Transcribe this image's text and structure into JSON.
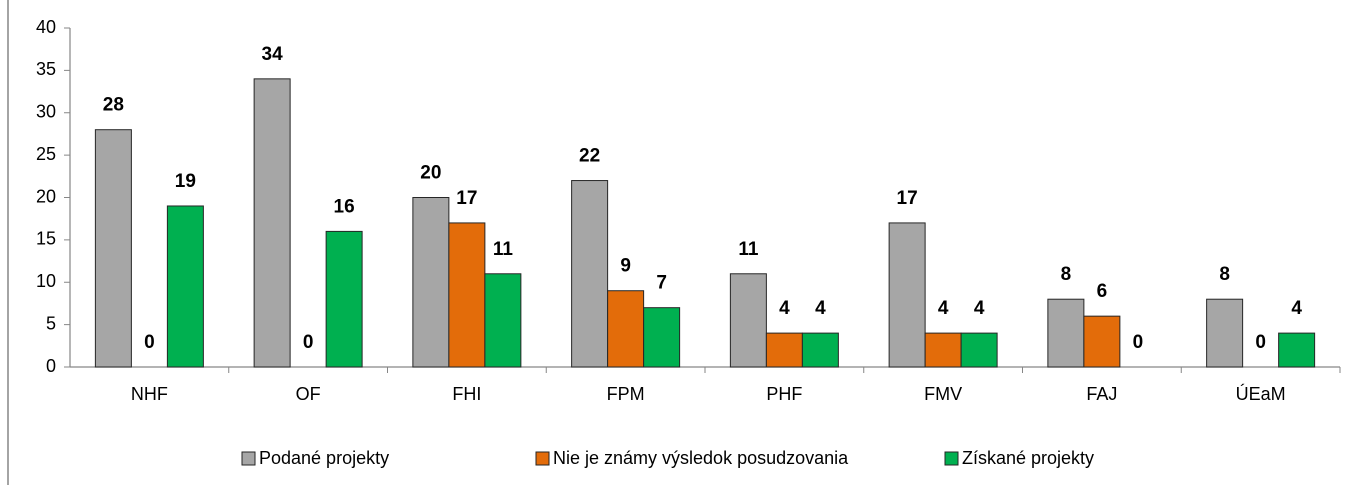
{
  "chart_data": {
    "type": "bar",
    "categories": [
      "NHF",
      "OF",
      "FHI",
      "FPM",
      "PHF",
      "FMV",
      "FAJ",
      "ÚEaM"
    ],
    "series": [
      {
        "name": "Podané projekty",
        "color": "#a6a6a6",
        "values": [
          28,
          34,
          20,
          22,
          11,
          17,
          8,
          8
        ]
      },
      {
        "name": "Nie je známy výsledok posudzovania",
        "color": "#e36c0a",
        "values": [
          0,
          0,
          17,
          9,
          4,
          4,
          6,
          0
        ]
      },
      {
        "name": "Získané projekty",
        "color": "#00b050",
        "values": [
          19,
          16,
          11,
          7,
          4,
          4,
          0,
          4
        ]
      }
    ],
    "ylim": [
      0,
      40
    ],
    "yticks": [
      0,
      5,
      10,
      15,
      20,
      25,
      30,
      35,
      40
    ],
    "grid": false,
    "legend": "bottom"
  }
}
